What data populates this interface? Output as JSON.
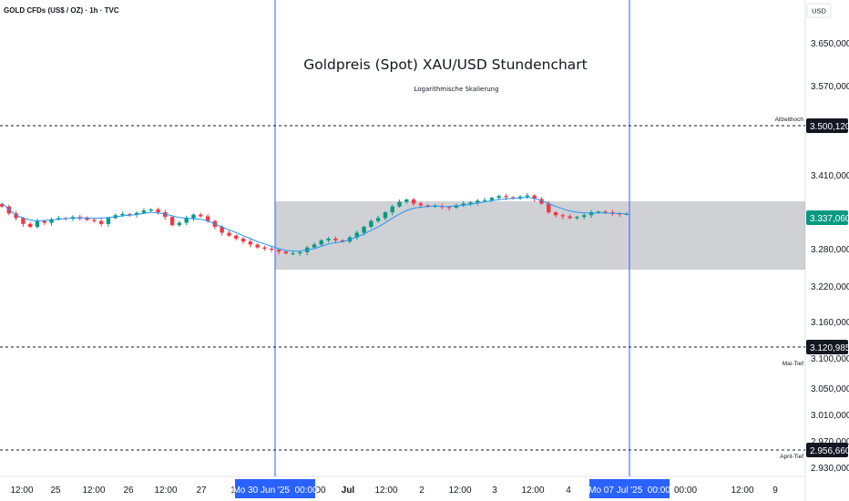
{
  "symbol_line": "GOLD CFDs (US$ / OZ) · 1h · TVC",
  "currency_label": "USD",
  "chart_data": {
    "type": "candlestick",
    "title": "Goldpreis (Spot) XAU/USD Stundenchart",
    "subtitle": "Logarithmische Skalierung",
    "y_scale": "log",
    "y_ticks": [
      "3.650,000",
      "3.570,000",
      "3.410,000",
      "3.280,000",
      "3.220,000",
      "3.160,000",
      "3.100,000",
      "3.050,000",
      "3.010,000",
      "2.970,000",
      "2.930,000"
    ],
    "x_ticks": [
      "12:00",
      "25",
      "12:00",
      "26",
      "12:00",
      "27",
      "1",
      "00:00",
      "Jul",
      "12:00",
      "2",
      "12:00",
      "3",
      "12:00",
      "4",
      "00:00",
      "12:00",
      "9"
    ],
    "markers": [
      {
        "date": "Mo 30 Jun '25  00:00"
      },
      {
        "date": "Mo 07 Jul '25  00:00"
      }
    ],
    "levels": [
      {
        "label": "Allzeithoch",
        "value": "3.500,120"
      },
      {
        "label": "Mai-Tief",
        "value": "3.120,985"
      },
      {
        "label": "April-Tief",
        "value": "2.956,660"
      }
    ],
    "last_price": "3.337,060",
    "range_box": {
      "top": 3370,
      "bottom": 3260
    },
    "close_series": [
      3350,
      3338,
      3330,
      3320,
      3315,
      3325,
      3322,
      3328,
      3330,
      3329,
      3332,
      3331,
      3327,
      3325,
      3320,
      3330,
      3335,
      3337,
      3336,
      3339,
      3343,
      3345,
      3340,
      3332,
      3318,
      3322,
      3330,
      3336,
      3333,
      3325,
      3315,
      3305,
      3300,
      3295,
      3290,
      3285,
      3280,
      3278,
      3276,
      3273,
      3270,
      3270,
      3272,
      3280,
      3285,
      3292,
      3295,
      3292,
      3290,
      3297,
      3305,
      3315,
      3325,
      3330,
      3340,
      3350,
      3358,
      3362,
      3355,
      3352,
      3350,
      3351,
      3349,
      3348,
      3352,
      3355,
      3357,
      3360,
      3361,
      3365,
      3368,
      3366,
      3364,
      3367,
      3369,
      3363,
      3355,
      3340,
      3335,
      3333,
      3330,
      3332,
      3335,
      3340,
      3341,
      3340,
      3338,
      3337,
      3337
    ],
    "ma_series": [
      3356,
      3345,
      3335,
      3330,
      3327,
      3325,
      3326,
      3327,
      3328,
      3329,
      3330,
      3330,
      3330,
      3330,
      3330,
      3331,
      3332,
      3334,
      3335,
      3336,
      3338,
      3340,
      3339,
      3337,
      3334,
      3331,
      3330,
      3329,
      3328,
      3325,
      3320,
      3315,
      3310,
      3305,
      3300,
      3295,
      3290,
      3286,
      3282,
      3278,
      3275,
      3274,
      3274,
      3276,
      3278,
      3282,
      3286,
      3288,
      3290,
      3293,
      3298,
      3303,
      3309,
      3315,
      3322,
      3330,
      3337,
      3343,
      3347,
      3349,
      3350,
      3351,
      3350,
      3350,
      3351,
      3352,
      3354,
      3356,
      3358,
      3360,
      3362,
      3363,
      3364,
      3365,
      3366,
      3364,
      3360,
      3355,
      3350,
      3346,
      3342,
      3340,
      3339,
      3339,
      3339,
      3339,
      3338,
      3338,
      3337
    ]
  }
}
